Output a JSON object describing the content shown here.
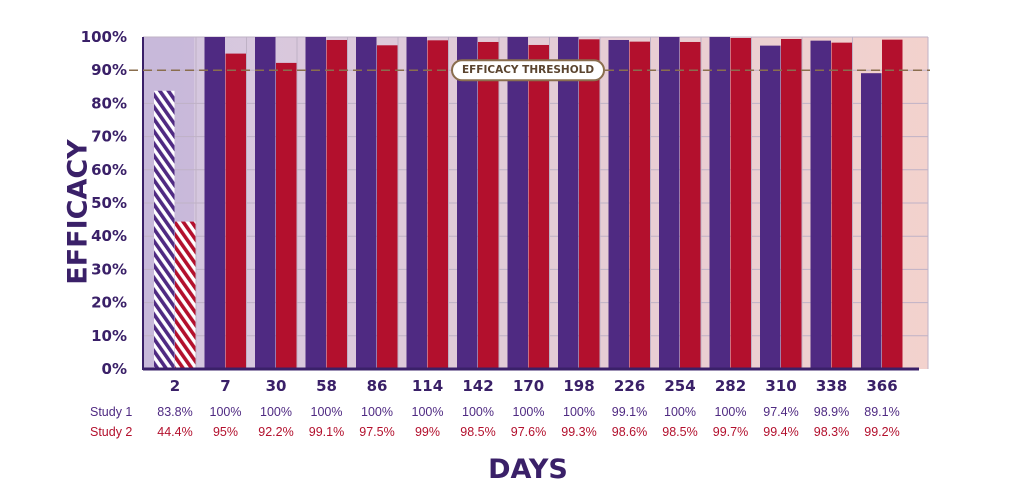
{
  "chart_data": {
    "type": "bar",
    "title": "",
    "xlabel": "DAYS",
    "ylabel": "EFFICACY",
    "ylim": [
      0,
      100
    ],
    "yticks": [
      "0%",
      "10%",
      "20%",
      "30%",
      "40%",
      "50%",
      "60%",
      "70%",
      "80%",
      "90%",
      "100%"
    ],
    "categories": [
      "2",
      "7",
      "30",
      "58",
      "86",
      "114",
      "142",
      "170",
      "198",
      "226",
      "254",
      "282",
      "310",
      "338",
      "366"
    ],
    "series": [
      {
        "name": "Study 1",
        "color": "#4f2a82",
        "values": [
          83.8,
          100,
          100,
          100,
          100,
          100,
          100,
          100,
          100,
          99.1,
          100,
          100,
          97.4,
          98.9,
          89.1
        ],
        "labels": [
          "83.8%",
          "100%",
          "100%",
          "100%",
          "100%",
          "100%",
          "100%",
          "100%",
          "100%",
          "99.1%",
          "100%",
          "100%",
          "97.4%",
          "98.9%",
          "89.1%"
        ]
      },
      {
        "name": "Study 2",
        "color": "#b3102d",
        "values": [
          44.4,
          95,
          92.2,
          99.1,
          97.5,
          99,
          98.5,
          97.6,
          99.3,
          98.6,
          98.5,
          99.7,
          99.4,
          98.3,
          99.2
        ],
        "labels": [
          "44.4%",
          "95%",
          "92.2%",
          "99.1%",
          "97.5%",
          "99%",
          "98.5%",
          "97.6%",
          "99.3%",
          "98.6%",
          "98.5%",
          "99.7%",
          "99.4%",
          "98.3%",
          "99.2%"
        ]
      }
    ],
    "threshold": {
      "value": 90,
      "label": "EFFICACY THRESHOLD",
      "color": "#8a6e4e"
    },
    "hatched_category": "2",
    "grid": true,
    "colors": {
      "axis": "#3a2068",
      "bg_left": "#d3c6e0",
      "bg_right": "#f3d2cd",
      "grid": "#bfb2c6"
    }
  }
}
